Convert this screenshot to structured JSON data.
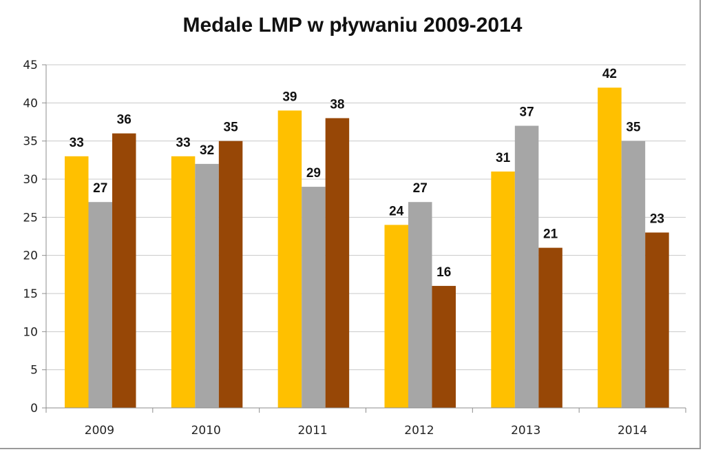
{
  "chart_data": {
    "type": "bar",
    "title": "Medale LMP w pływaniu 2009-2014",
    "xlabel": "",
    "ylabel": "",
    "categories": [
      "2009",
      "2010",
      "2011",
      "2012",
      "2013",
      "2014"
    ],
    "ylim": [
      0,
      45
    ],
    "yticks": [
      "0",
      "5",
      "10",
      "15",
      "20",
      "25",
      "30",
      "35",
      "40",
      "45"
    ],
    "grid": true,
    "legend": "none",
    "series": [
      {
        "values": [
          33,
          33,
          39,
          24,
          31,
          42
        ],
        "color": "#ffc000"
      },
      {
        "values": [
          27,
          32,
          29,
          27,
          37,
          35
        ],
        "color": "#a6a6a6"
      },
      {
        "values": [
          36,
          35,
          38,
          16,
          21,
          23
        ],
        "color": "#974706"
      }
    ]
  }
}
